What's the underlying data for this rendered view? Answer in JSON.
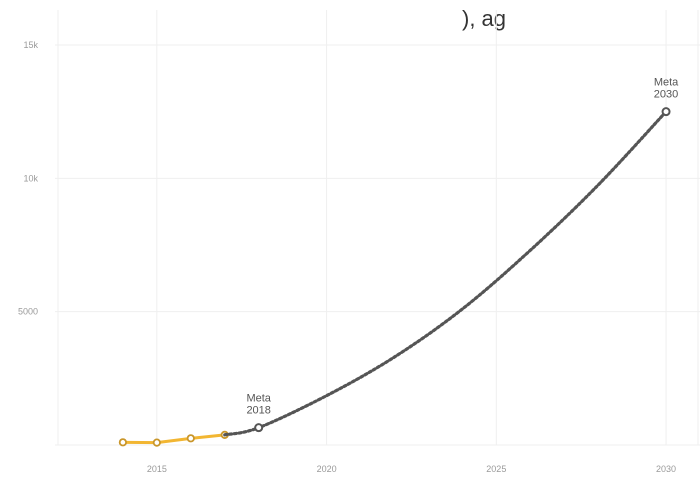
{
  "header": {
    "title_fragment": "), ag"
  },
  "chart_data": {
    "type": "line",
    "title": "",
    "xlabel": "",
    "ylabel": "",
    "xlim": [
      2012,
      2031
    ],
    "ylim": [
      0,
      15000
    ],
    "grid": true,
    "x_ticks": [
      {
        "value": 2015,
        "label": "2015"
      },
      {
        "value": 2020,
        "label": "2020"
      },
      {
        "value": 2025,
        "label": "2025"
      },
      {
        "value": 2030,
        "label": "2030"
      }
    ],
    "y_ticks": [
      {
        "value": 5000,
        "label": "5000"
      },
      {
        "value": 10000,
        "label": "10k"
      },
      {
        "value": 15000,
        "label": "15k"
      }
    ],
    "series": [
      {
        "style": "solid",
        "color": "#f2b632",
        "marker_color": "#c9962a",
        "x": [
          2014,
          2015,
          2016,
          2017
        ],
        "y": [
          100,
          90,
          250,
          380
        ]
      },
      {
        "style": "dotted",
        "color": "#555555",
        "marker_color": "#555555",
        "x": [
          2017,
          2018,
          2020,
          2022,
          2024,
          2026,
          2028,
          2030
        ],
        "y": [
          380,
          650,
          1850,
          3300,
          5100,
          7300,
          9750,
          12500
        ],
        "marker_x": [
          2018,
          2030
        ],
        "marker_y": [
          650,
          12500
        ]
      }
    ],
    "annotations": [
      {
        "x": 2018,
        "y": 650,
        "line1": "Meta",
        "line2": "2018"
      },
      {
        "x": 2030,
        "y": 12500,
        "line1": "Meta",
        "line2": "2030"
      }
    ]
  }
}
